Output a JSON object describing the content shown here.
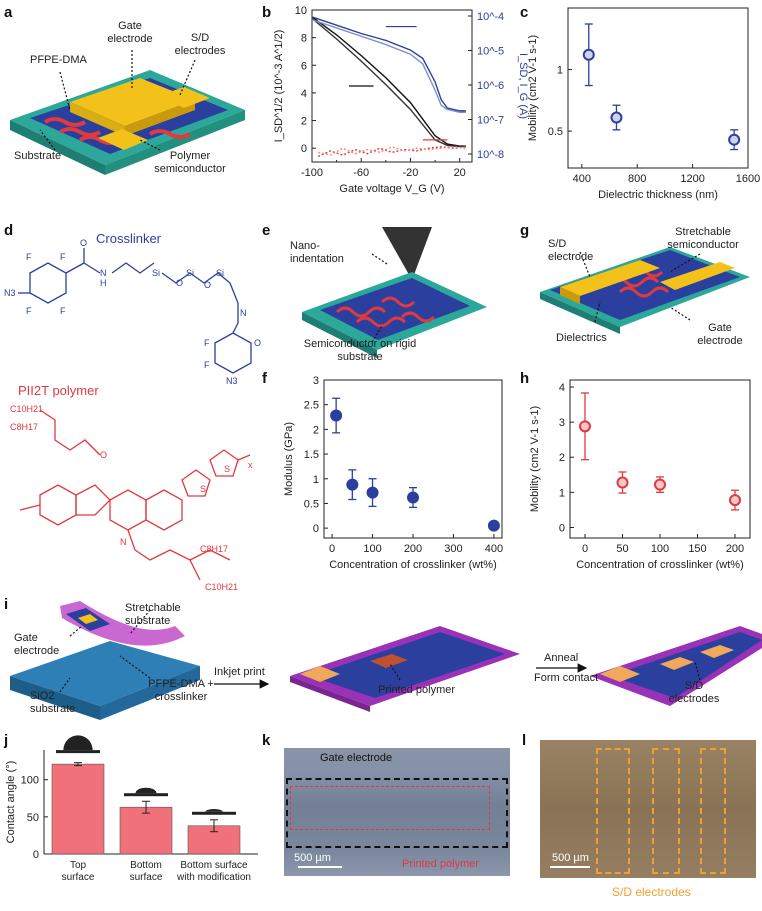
{
  "panels": {
    "a": "a",
    "b": "b",
    "c": "c",
    "d": "d",
    "e": "e",
    "f": "f",
    "g": "g",
    "h": "h",
    "i": "i",
    "j": "j",
    "k": "k",
    "l": "l"
  },
  "panel_a": {
    "gate_electrode": "Gate electrode",
    "pfpe": "PFPE-DMA",
    "sd_electrodes": "S/D electrodes",
    "substrate": "Substrate",
    "polymer_semiconductor": "Polymer semiconductor"
  },
  "panel_d": {
    "crosslinker": "Crosslinker",
    "pii2t": "PII2T polymer"
  },
  "panel_e": {
    "nanoindentation": "Nano-indentation",
    "semiconductor": "Semiconductor on rigid substrate"
  },
  "panel_g": {
    "sd_electrode": "S/D electrode",
    "stretchable_semiconductor": "Stretchable semiconductor",
    "dielectrics": "Dielectrics",
    "gate_electrode": "Gate electrode"
  },
  "panel_i": {
    "stretchable_substrate": "Stretchable substrate",
    "gate_electrode": "Gate electrode",
    "sio2_substrate": "SiO2 substrate",
    "pfpe_crosslinker": "PFPE-DMA + crosslinker",
    "inkjet_print": "Inkjet print",
    "printed_polymer": "Printed polymer",
    "anneal": "Anneal",
    "form_contact": "Form contact",
    "sd_electrodes": "S/D electrodes"
  },
  "panel_k": {
    "gate_electrode": "Gate electrode",
    "scale": "500 µm",
    "printed_polymer": "Printed polymer"
  },
  "panel_l": {
    "scale": "500 µm",
    "sd_electrodes": "S/D electrodes"
  },
  "colors": {
    "blue": "#2b3f9e",
    "red": "#e0393e",
    "teal": "#2ba89a",
    "gold": "#f2c21b",
    "purple": "#9a32b8",
    "pink": "#f0717a"
  },
  "chart_data": [
    {
      "panel": "b",
      "type": "line",
      "xlabel": "Gate voltage V_G (V)",
      "ylabel_left": "I_SD^1/2 (10^-3 A^1/2)",
      "ylabel_right": "I_SD, I_G (A)",
      "xticks": [
        -100,
        -60,
        -20,
        20
      ],
      "xticks_minor": [
        -80,
        -40,
        0
      ],
      "xlim": [
        -100,
        30
      ],
      "ylim_left": [
        -1,
        10
      ],
      "yticks_left": [
        0,
        2,
        4,
        6,
        8,
        10
      ],
      "yticks_right": [
        "10^-8",
        "10^-7",
        "10^-6",
        "10^-5",
        "10^-4"
      ],
      "series": [
        {
          "axis": "left",
          "x": [
            -100,
            -80,
            -60,
            -40,
            -20,
            -10,
            0,
            10,
            20,
            25
          ],
          "y": [
            9.5,
            8.2,
            6.7,
            5.1,
            3.3,
            2.1,
            0.9,
            0.3,
            0.15,
            0.15
          ]
        },
        {
          "axis": "left",
          "x": [
            -100,
            -80,
            -60,
            -40,
            -20,
            -10,
            0,
            10,
            20,
            25
          ],
          "y": [
            9.4,
            7.9,
            6.3,
            4.6,
            2.8,
            1.7,
            0.6,
            0.2,
            0.12,
            0.12
          ]
        },
        {
          "axis": "right",
          "x": [
            -100,
            -80,
            -60,
            -40,
            -20,
            -10,
            0,
            5,
            10,
            20,
            25
          ],
          "y": [
            9.5,
            8.9,
            8.3,
            7.8,
            7.1,
            6.5,
            4.8,
            3.5,
            2.9,
            2.7,
            2.7
          ]
        },
        {
          "axis": "right",
          "x": [
            -100,
            -80,
            -60,
            -40,
            -20,
            -10,
            0,
            5,
            10,
            20,
            25
          ],
          "y": [
            9.3,
            8.7,
            8.1,
            7.5,
            6.8,
            6.1,
            4.2,
            3.1,
            2.8,
            2.6,
            2.6
          ]
        },
        {
          "axis": "right",
          "x": [
            -95,
            -85,
            -75,
            -65,
            -55,
            -45,
            -35,
            -25,
            -15,
            -5,
            5,
            15,
            25
          ],
          "y": [
            -0.6,
            -0.2,
            -0.5,
            -0.1,
            -0.4,
            0.0,
            -0.3,
            -0.1,
            -0.2,
            0.0,
            0.1,
            0.0,
            0.1
          ]
        },
        {
          "axis": "right",
          "x": [
            -95,
            -85,
            -75,
            -65,
            -55,
            -45,
            -35,
            -25,
            -15,
            -5,
            5,
            15,
            25
          ],
          "y": [
            -0.3,
            -0.5,
            0.0,
            -0.4,
            -0.1,
            -0.3,
            0.1,
            -0.2,
            0.0,
            -0.1,
            0.0,
            0.1,
            0.0
          ]
        }
      ]
    },
    {
      "panel": "c",
      "type": "scatter",
      "xlabel": "Dielectric thickness (nm)",
      "ylabel": "Mobility (cm2 V-1 s-1)",
      "xlim": [
        300,
        1600
      ],
      "ylim": [
        0.2,
        1.5
      ],
      "xticks": [
        400,
        800,
        1200,
        1600
      ],
      "yticks": [
        0.5,
        1.0
      ],
      "x": [
        450,
        650,
        1500
      ],
      "y": [
        1.12,
        0.61,
        0.43
      ],
      "err": [
        0.25,
        0.1,
        0.08
      ]
    },
    {
      "panel": "f",
      "type": "scatter",
      "xlabel": "Concentration of crosslinker (wt%)",
      "ylabel": "Modulus (GPa)",
      "xlim": [
        -20,
        420
      ],
      "ylim": [
        -0.2,
        3.0
      ],
      "xticks": [
        0,
        100,
        200,
        300,
        400
      ],
      "yticks": [
        0,
        0.5,
        1.0,
        1.5,
        2.0,
        2.5,
        3.0
      ],
      "x": [
        10,
        50,
        100,
        200,
        400
      ],
      "y": [
        2.28,
        0.88,
        0.72,
        0.62,
        0.05
      ],
      "err": [
        0.35,
        0.3,
        0.28,
        0.2,
        0.0
      ]
    },
    {
      "panel": "h",
      "type": "scatter",
      "xlabel": "Concentration of crosslinker (wt%)",
      "ylabel": "Mobility (cm2 V-1 s-1)",
      "xlim": [
        -20,
        220
      ],
      "ylim": [
        -0.3,
        4.2
      ],
      "xticks": [
        0,
        50,
        100,
        150,
        200
      ],
      "yticks": [
        0,
        1,
        2,
        3,
        4
      ],
      "x": [
        0,
        50,
        100,
        200
      ],
      "y": [
        2.88,
        1.28,
        1.22,
        0.78
      ],
      "err": [
        0.95,
        0.3,
        0.22,
        0.28
      ]
    },
    {
      "panel": "j",
      "type": "bar",
      "ylabel": "Contact angle (°)",
      "ylim": [
        0,
        140
      ],
      "yticks": [
        0,
        50,
        100
      ],
      "categories": [
        "Top surface",
        "Bottom surface",
        "Bottom surface with modification"
      ],
      "values": [
        121,
        63,
        38
      ],
      "err": [
        2,
        8,
        8
      ]
    }
  ]
}
